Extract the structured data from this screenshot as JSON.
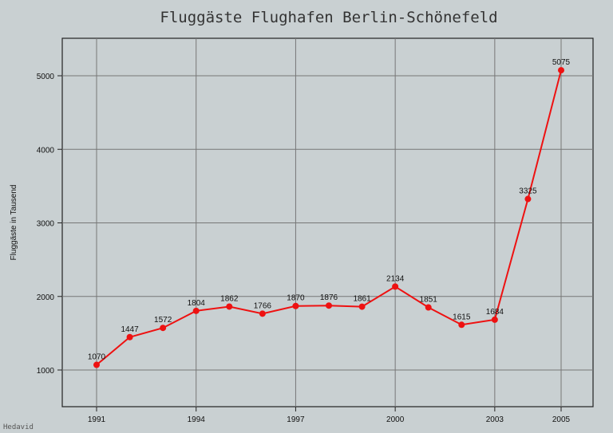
{
  "chart_data": {
    "type": "line",
    "title": "Fluggäste Flughafen Berlin-Schönefeld",
    "ylabel": "Fluggäste in Tausend",
    "xlabel": "",
    "x": [
      1991,
      1992,
      1993,
      1994,
      1995,
      1996,
      1997,
      1998,
      1999,
      2000,
      2001,
      2002,
      2003,
      2004,
      2005
    ],
    "values": [
      1070,
      1447,
      1572,
      1804,
      1862,
      1766,
      1870,
      1876,
      1861,
      2134,
      1851,
      1615,
      1684,
      3325,
      5075
    ],
    "data_labels": [
      "1070",
      "1447",
      "1572",
      "1804",
      "1862",
      "1766",
      "1870",
      "1876",
      "1861",
      "2134",
      "1851",
      "1615",
      "1684",
      "3325",
      "5075"
    ],
    "x_ticks": [
      "1991",
      "1994",
      "1997",
      "2000",
      "2003",
      "2005"
    ],
    "y_ticks": [
      "1000",
      "2000",
      "3000",
      "4000",
      "5000"
    ],
    "xlim": [
      1991,
      2005
    ],
    "ylim": [
      1000,
      5000
    ],
    "grid": true,
    "series_color": "#ee1111",
    "credit": "Hedavid"
  }
}
